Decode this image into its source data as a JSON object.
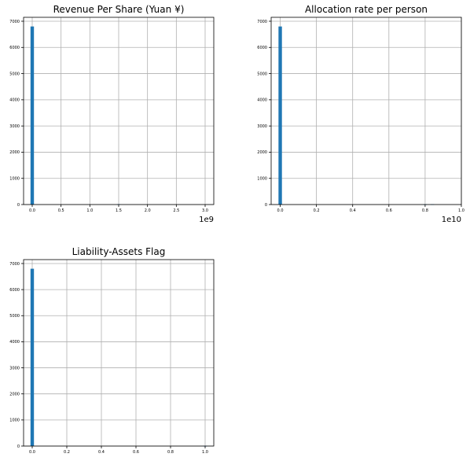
{
  "chart_data": [
    {
      "type": "bar",
      "title": "Revenue Per Share (Yuan ¥)",
      "offset_label": "1e9",
      "xlim": [
        -0.15,
        3.15
      ],
      "ylim": [
        0,
        7150
      ],
      "xticks": [
        0.0,
        0.5,
        1.0,
        1.5,
        2.0,
        2.5,
        3.0
      ],
      "xtick_labels": [
        "0.0",
        "0.5",
        "1.0",
        "1.5",
        "2.0",
        "2.5",
        "3.0"
      ],
      "yticks": [
        0,
        1000,
        2000,
        3000,
        4000,
        5000,
        6000,
        7000
      ],
      "ytick_labels": [
        "0",
        "1000",
        "2000",
        "3000",
        "4000",
        "5000",
        "6000",
        "7000"
      ],
      "grid": true,
      "bin_width": 0.06,
      "bins": [
        {
          "x": 0.0,
          "value": 6800
        },
        {
          "x": 1.5,
          "value": 15
        }
      ]
    },
    {
      "type": "bar",
      "title": "Allocation rate per person",
      "offset_label": "1e10",
      "xlim": [
        -0.05,
        1.0
      ],
      "ylim": [
        0,
        7150
      ],
      "xticks": [
        0.0,
        0.2,
        0.4,
        0.6,
        0.8,
        1.0
      ],
      "xtick_labels": [
        "0.0",
        "0.2",
        "0.4",
        "0.6",
        "0.8",
        "1.0"
      ],
      "yticks": [
        0,
        1000,
        2000,
        3000,
        4000,
        5000,
        6000,
        7000
      ],
      "ytick_labels": [
        "0",
        "1000",
        "2000",
        "3000",
        "4000",
        "5000",
        "6000",
        "7000"
      ],
      "grid": true,
      "bin_width": 0.019,
      "bins": [
        {
          "x": 0.0,
          "value": 6800
        },
        {
          "x": 0.8,
          "value": 8
        },
        {
          "x": 0.84,
          "value": 12
        }
      ]
    },
    {
      "type": "bar",
      "title": "Liability-Assets Flag",
      "offset_label": "",
      "xlim": [
        -0.05,
        1.05
      ],
      "ylim": [
        0,
        7150
      ],
      "xticks": [
        0.0,
        0.2,
        0.4,
        0.6,
        0.8,
        1.0
      ],
      "xtick_labels": [
        "0.0",
        "0.2",
        "0.4",
        "0.6",
        "0.8",
        "1.0"
      ],
      "yticks": [
        0,
        1000,
        2000,
        3000,
        4000,
        5000,
        6000,
        7000
      ],
      "ytick_labels": [
        "0",
        "1000",
        "2000",
        "3000",
        "4000",
        "5000",
        "6000",
        "7000"
      ],
      "grid": true,
      "bin_width": 0.02,
      "bins": [
        {
          "x": 0.0,
          "value": 6800
        },
        {
          "x": 1.0,
          "value": 8
        }
      ]
    }
  ]
}
